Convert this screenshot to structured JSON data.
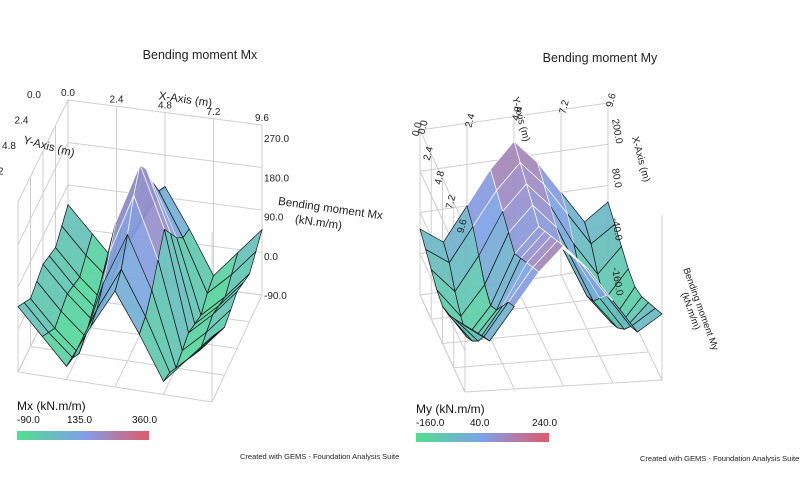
{
  "chart_data": [
    {
      "type": "surface3d",
      "title": "Bending moment Mx",
      "xlabel": "X-Axis (m)",
      "ylabel": "Y-Axis (m)",
      "zlabel": "Bending moment Mx (kN.m/m)",
      "x_ticks": [
        "0.0",
        "2.4",
        "4.8",
        "7.2",
        "9.6"
      ],
      "y_ticks": [
        "0.0",
        "2.4",
        "4.8",
        "7.2",
        "9.6"
      ],
      "z_ticks": [
        "-90.0",
        "0.0",
        "90.0",
        "180.0",
        "270.0"
      ],
      "x": [
        0.0,
        1.2,
        2.4,
        3.6,
        4.8,
        6.0,
        7.2,
        8.4,
        9.6
      ],
      "y": [
        0.0,
        1.2,
        2.4,
        3.6,
        4.8,
        6.0,
        7.2,
        8.4,
        9.6
      ],
      "z": [
        [
          60,
          0,
          -60,
          40,
          130,
          40,
          -60,
          0,
          60
        ],
        [
          40,
          -20,
          -70,
          50,
          150,
          50,
          -70,
          -20,
          40
        ],
        [
          20,
          -40,
          -90,
          80,
          200,
          80,
          -90,
          -40,
          20
        ],
        [
          30,
          -30,
          -80,
          120,
          260,
          120,
          -80,
          -30,
          30
        ],
        [
          40,
          -20,
          -70,
          160,
          300,
          160,
          -70,
          -20,
          40
        ],
        [
          30,
          -30,
          -80,
          120,
          260,
          120,
          -80,
          -30,
          30
        ],
        [
          20,
          -40,
          -90,
          80,
          200,
          80,
          -90,
          -40,
          20
        ],
        [
          40,
          -20,
          -70,
          50,
          150,
          50,
          -70,
          -20,
          40
        ],
        [
          60,
          0,
          -60,
          40,
          130,
          40,
          -60,
          0,
          60
        ]
      ],
      "colorbar": {
        "label": "Mx (kN.m/m)",
        "ticks": [
          "-90.0",
          "135.0",
          "360.0"
        ],
        "min": -90,
        "max": 360
      },
      "colors": [
        "#4ee08e",
        "#7fa0e8",
        "#df5a6a"
      ],
      "credit": "Created with GEMS - Foundation Analysis Suite"
    },
    {
      "type": "surface3d",
      "title": "Bending moment My",
      "xlabel": "X-Axis (m)",
      "ylabel": "Y-Axis (m)",
      "zlabel": "Bending moment My (kN.m/m)",
      "x_ticks": [
        "0.0",
        "2.4",
        "4.8",
        "7.2",
        "9.6"
      ],
      "y_ticks": [
        "0.0",
        "2.4",
        "4.8",
        "7.2",
        "9.6"
      ],
      "z_ticks": [
        "-160.0",
        "-40.0",
        "80.0",
        "200.0"
      ],
      "x": [
        0.0,
        1.2,
        2.4,
        3.6,
        4.8,
        6.0,
        7.2,
        8.4,
        9.6
      ],
      "y": [
        0.0,
        1.2,
        2.4,
        3.6,
        4.8,
        6.0,
        7.2,
        8.4,
        9.6
      ],
      "z": [
        [
          0,
          -40,
          40,
          120,
          180,
          120,
          40,
          -40,
          0
        ],
        [
          -20,
          -60,
          20,
          100,
          160,
          100,
          20,
          -60,
          -20
        ],
        [
          -40,
          -100,
          -20,
          80,
          140,
          80,
          -20,
          -100,
          -40
        ],
        [
          -60,
          -130,
          -60,
          60,
          120,
          60,
          -60,
          -130,
          -60
        ],
        [
          -70,
          -150,
          -80,
          40,
          100,
          40,
          -80,
          -150,
          -70
        ],
        [
          -60,
          -130,
          -60,
          60,
          120,
          60,
          -60,
          -130,
          -60
        ],
        [
          -40,
          -100,
          -20,
          80,
          140,
          80,
          -20,
          -100,
          -40
        ],
        [
          -20,
          -60,
          20,
          100,
          160,
          100,
          20,
          -60,
          -20
        ],
        [
          0,
          -40,
          40,
          120,
          180,
          120,
          40,
          -40,
          0
        ]
      ],
      "colorbar": {
        "label": "My (kN.m/m)",
        "ticks": [
          "-160.0",
          "40.0",
          "240.0"
        ],
        "min": -160,
        "max": 240
      },
      "colors": [
        "#4ee08e",
        "#7fa0e8",
        "#df5a6a"
      ],
      "credit": "Created with GEMS - Foundation Analysis Suite"
    }
  ]
}
